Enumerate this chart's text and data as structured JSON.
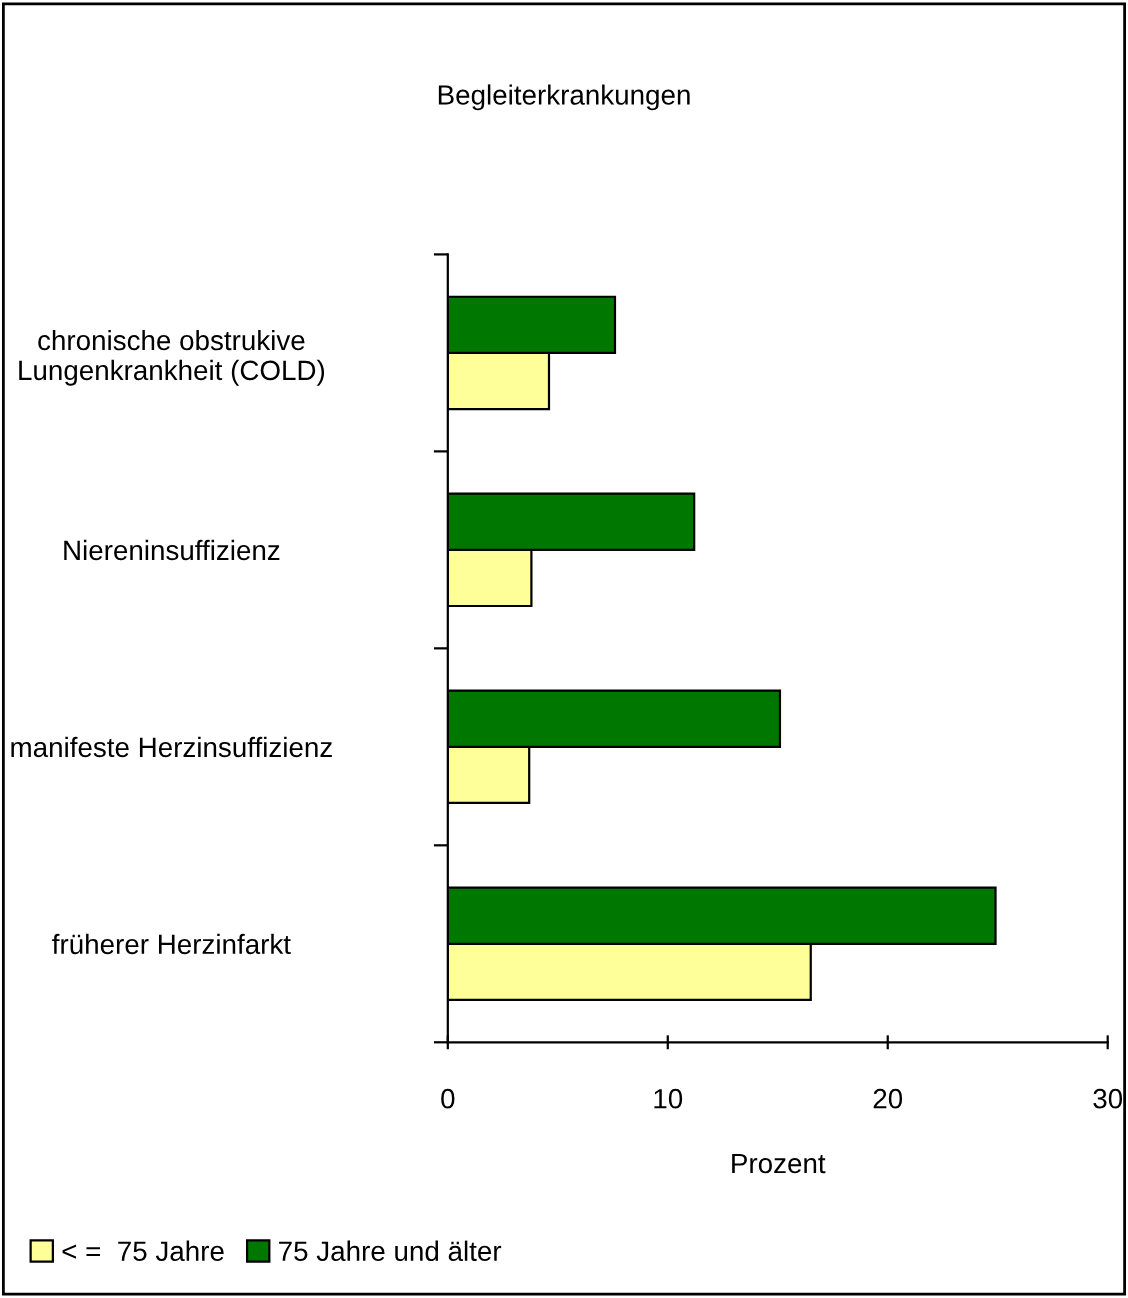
{
  "chart_data": {
    "type": "bar",
    "orientation": "horizontal",
    "title": "Begleiterkrankungen",
    "xlabel": "Prozent",
    "categories": [
      "chronische obstrukive\nLungenkrankheit (COLD)",
      "Niereninsuffizienz",
      "manifeste Herzinsuffizienz",
      "früherer Herzinfarkt"
    ],
    "series": [
      {
        "name": "< =  75 Jahre",
        "color": "#ffff99",
        "values": [
          4.6,
          3.8,
          3.7,
          16.5
        ]
      },
      {
        "name": "75 Jahre und älter",
        "color": "#007800",
        "values": [
          7.6,
          11.2,
          15.1,
          24.9
        ]
      }
    ],
    "xlim": [
      0,
      30
    ],
    "xticks": [
      0,
      10,
      20,
      30
    ],
    "grid": false,
    "legend": "bottom left"
  }
}
